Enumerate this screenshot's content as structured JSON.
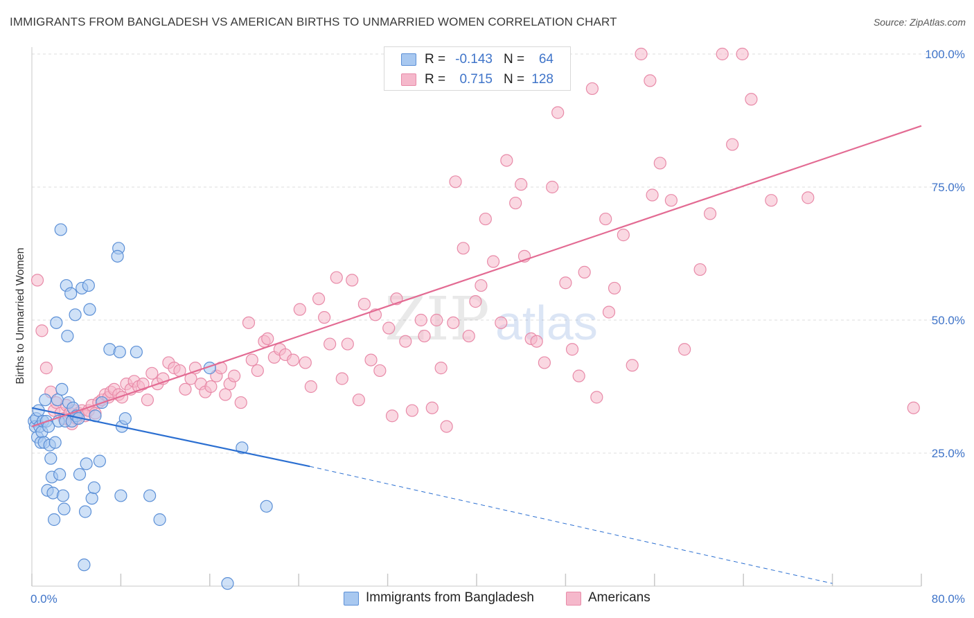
{
  "header": {
    "title": "IMMIGRANTS FROM BANGLADESH VS AMERICAN BIRTHS TO UNMARRIED WOMEN CORRELATION CHART",
    "source": "Source: ZipAtlas.com"
  },
  "watermark": {
    "zip": "ZIP",
    "atlas": "atlas"
  },
  "legend": {
    "rows": [
      {
        "r_label": "R =",
        "r_value": "-0.143",
        "n_label": "N =",
        "n_value": "64",
        "color": "#a8c8f0"
      },
      {
        "r_label": "R =",
        "r_value": "0.715",
        "n_label": "N =",
        "n_value": "128",
        "color": "#f5b8cb"
      }
    ]
  },
  "bottom_legend": {
    "series1": "Immigrants from Bangladesh",
    "series2": "Americans"
  },
  "colors": {
    "blue_fill": "#a8c8f0",
    "blue_stroke": "#5b8fd6",
    "blue_line": "#2b6fd1",
    "pink_fill": "#f5b8cb",
    "pink_stroke": "#e88aa8",
    "pink_line": "#e36b93",
    "tick_text": "#3f74c9",
    "grid": "#dcdcdc"
  },
  "chart_data": {
    "type": "scatter",
    "title": "IMMIGRANTS FROM BANGLADESH VS AMERICAN BIRTHS TO UNMARRIED WOMEN CORRELATION CHART",
    "xlabel": "",
    "ylabel": "Births to Unmarried Women",
    "xlim": [
      0,
      80
    ],
    "ylim": [
      0,
      100
    ],
    "x_tick_labels": [
      "0.0%",
      "80.0%"
    ],
    "y_tick_labels": [
      {
        "value": 100,
        "label": "100.0%"
      },
      {
        "value": 75,
        "label": "75.0%"
      },
      {
        "value": 50,
        "label": "50.0%"
      },
      {
        "value": 25,
        "label": "25.0%"
      }
    ],
    "grid": true,
    "legend_position": "top-center",
    "series": [
      {
        "name": "Immigrants from Bangladesh",
        "r": -0.143,
        "n": 64,
        "trend": {
          "x0": 0,
          "y0": 33.5,
          "x1": 25,
          "y1": 22.5,
          "dash_to_x": 72,
          "dash_to_y": 0.5
        },
        "points": [
          [
            0.2,
            31
          ],
          [
            0.3,
            30
          ],
          [
            0.4,
            31.5
          ],
          [
            0.5,
            28
          ],
          [
            0.6,
            33
          ],
          [
            0.7,
            30
          ],
          [
            0.8,
            27
          ],
          [
            0.9,
            29
          ],
          [
            1.0,
            31
          ],
          [
            1.1,
            27
          ],
          [
            1.2,
            35
          ],
          [
            1.3,
            31
          ],
          [
            1.4,
            18
          ],
          [
            1.5,
            30
          ],
          [
            1.6,
            26.5
          ],
          [
            1.7,
            24
          ],
          [
            1.8,
            20.5
          ],
          [
            1.9,
            17.5
          ],
          [
            2.0,
            12.5
          ],
          [
            2.1,
            27
          ],
          [
            2.2,
            49.5
          ],
          [
            2.3,
            35
          ],
          [
            2.4,
            31
          ],
          [
            2.5,
            21
          ],
          [
            2.6,
            67
          ],
          [
            2.7,
            37
          ],
          [
            2.8,
            17
          ],
          [
            2.9,
            14.5
          ],
          [
            3.0,
            31
          ],
          [
            3.1,
            56.5
          ],
          [
            3.2,
            47
          ],
          [
            3.3,
            34.5
          ],
          [
            3.5,
            55
          ],
          [
            3.6,
            31
          ],
          [
            3.7,
            33.5
          ],
          [
            3.9,
            51
          ],
          [
            4.0,
            32
          ],
          [
            4.2,
            31.5
          ],
          [
            4.3,
            21
          ],
          [
            4.5,
            56
          ],
          [
            4.7,
            4
          ],
          [
            4.8,
            14
          ],
          [
            4.9,
            23
          ],
          [
            5.1,
            56.5
          ],
          [
            5.2,
            52
          ],
          [
            5.4,
            16.5
          ],
          [
            5.6,
            18.5
          ],
          [
            5.7,
            32
          ],
          [
            6.1,
            23.5
          ],
          [
            6.3,
            34.5
          ],
          [
            7.0,
            44.5
          ],
          [
            7.8,
            63.5
          ],
          [
            7.7,
            62
          ],
          [
            7.9,
            44
          ],
          [
            8.0,
            17
          ],
          [
            8.1,
            30
          ],
          [
            8.4,
            31.5
          ],
          [
            9.4,
            44
          ],
          [
            10.6,
            17
          ],
          [
            11.5,
            12.5
          ],
          [
            16.0,
            41
          ],
          [
            17.6,
            0.5
          ],
          [
            18.9,
            26
          ],
          [
            21.1,
            15
          ]
        ]
      },
      {
        "name": "Americans",
        "r": 0.715,
        "n": 128,
        "trend": {
          "x0": 0,
          "y0": 30,
          "x1": 80,
          "y1": 86.5
        },
        "points": [
          [
            0.5,
            57.5
          ],
          [
            0.9,
            48
          ],
          [
            1.3,
            41
          ],
          [
            1.7,
            36.5
          ],
          [
            2.0,
            33
          ],
          [
            2.2,
            34.5
          ],
          [
            2.6,
            32.5
          ],
          [
            2.9,
            31.5
          ],
          [
            3.1,
            34
          ],
          [
            3.4,
            32.5
          ],
          [
            3.6,
            30.5
          ],
          [
            3.8,
            33
          ],
          [
            4.0,
            31.5
          ],
          [
            4.2,
            32.5
          ],
          [
            4.5,
            33
          ],
          [
            4.8,
            32
          ],
          [
            5.1,
            33
          ],
          [
            5.4,
            34
          ],
          [
            5.7,
            32.5
          ],
          [
            6.0,
            34.5
          ],
          [
            6.3,
            35
          ],
          [
            6.6,
            36
          ],
          [
            6.9,
            35.5
          ],
          [
            7.1,
            36.5
          ],
          [
            7.4,
            37
          ],
          [
            7.8,
            36
          ],
          [
            8.1,
            35.5
          ],
          [
            8.5,
            38
          ],
          [
            8.9,
            37
          ],
          [
            9.2,
            38.5
          ],
          [
            9.6,
            37.5
          ],
          [
            10.0,
            38
          ],
          [
            10.4,
            35
          ],
          [
            10.8,
            40
          ],
          [
            11.3,
            38
          ],
          [
            11.8,
            39
          ],
          [
            12.3,
            42
          ],
          [
            12.8,
            41
          ],
          [
            13.3,
            40.5
          ],
          [
            13.8,
            37
          ],
          [
            14.3,
            39
          ],
          [
            14.7,
            41
          ],
          [
            15.2,
            38
          ],
          [
            15.6,
            36.5
          ],
          [
            16.1,
            37.5
          ],
          [
            16.6,
            39.5
          ],
          [
            17.0,
            41
          ],
          [
            17.4,
            36
          ],
          [
            17.8,
            38
          ],
          [
            18.2,
            39.5
          ],
          [
            18.8,
            34.5
          ],
          [
            19.5,
            49.5
          ],
          [
            19.8,
            42.5
          ],
          [
            20.3,
            40.5
          ],
          [
            20.9,
            46
          ],
          [
            21.2,
            46.5
          ],
          [
            21.8,
            43
          ],
          [
            22.3,
            44.5
          ],
          [
            22.8,
            43.5
          ],
          [
            23.5,
            42.5
          ],
          [
            24.1,
            52
          ],
          [
            24.6,
            42
          ],
          [
            25.1,
            37.5
          ],
          [
            25.8,
            54
          ],
          [
            26.3,
            50.5
          ],
          [
            26.8,
            45.5
          ],
          [
            27.4,
            58
          ],
          [
            27.9,
            39
          ],
          [
            28.4,
            45.5
          ],
          [
            28.8,
            57.5
          ],
          [
            29.4,
            35
          ],
          [
            29.9,
            53
          ],
          [
            30.5,
            42.5
          ],
          [
            30.9,
            51
          ],
          [
            31.3,
            40.5
          ],
          [
            32.1,
            48.5
          ],
          [
            32.4,
            32
          ],
          [
            32.8,
            54
          ],
          [
            33.6,
            46
          ],
          [
            34.2,
            33
          ],
          [
            35.0,
            50
          ],
          [
            35.3,
            47
          ],
          [
            36.0,
            33.5
          ],
          [
            36.4,
            50
          ],
          [
            36.8,
            41
          ],
          [
            37.3,
            30
          ],
          [
            37.9,
            49.5
          ],
          [
            38.1,
            76
          ],
          [
            38.8,
            63.5
          ],
          [
            39.3,
            47
          ],
          [
            39.9,
            53.5
          ],
          [
            40.4,
            56.5
          ],
          [
            40.8,
            69
          ],
          [
            41.5,
            61
          ],
          [
            42.2,
            49.5
          ],
          [
            42.7,
            80
          ],
          [
            43.5,
            72
          ],
          [
            44.0,
            75.5
          ],
          [
            44.3,
            62
          ],
          [
            44.9,
            46.5
          ],
          [
            45.4,
            46
          ],
          [
            46.1,
            42
          ],
          [
            46.8,
            75
          ],
          [
            47.3,
            89
          ],
          [
            48.0,
            57
          ],
          [
            48.6,
            44.5
          ],
          [
            49.2,
            39.5
          ],
          [
            49.7,
            59
          ],
          [
            50.4,
            93.5
          ],
          [
            50.8,
            35.5
          ],
          [
            51.6,
            69
          ],
          [
            51.9,
            51.5
          ],
          [
            52.4,
            56
          ],
          [
            53.2,
            66
          ],
          [
            54.0,
            41.5
          ],
          [
            54.8,
            100
          ],
          [
            55.6,
            95
          ],
          [
            55.8,
            73.5
          ],
          [
            56.5,
            79.5
          ],
          [
            57.5,
            72.5
          ],
          [
            58.7,
            44.5
          ],
          [
            60.1,
            59.5
          ],
          [
            61.0,
            70
          ],
          [
            62.1,
            100
          ],
          [
            63.0,
            83
          ],
          [
            63.9,
            100
          ],
          [
            64.7,
            91.5
          ],
          [
            66.5,
            72.5
          ],
          [
            69.8,
            73
          ],
          [
            79.3,
            33.5
          ]
        ]
      }
    ]
  }
}
